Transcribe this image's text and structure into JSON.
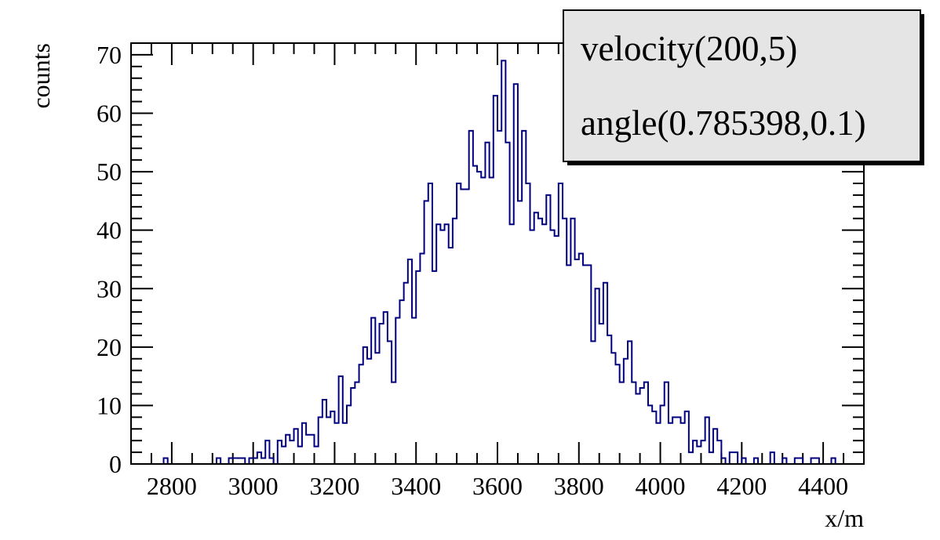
{
  "chart_data": {
    "type": "histogram",
    "x": [
      2700,
      2710,
      2720,
      2730,
      2740,
      2750,
      2760,
      2770,
      2780,
      2790,
      2800,
      2810,
      2820,
      2830,
      2840,
      2850,
      2860,
      2870,
      2880,
      2890,
      2900,
      2910,
      2920,
      2930,
      2940,
      2950,
      2960,
      2970,
      2980,
      2990,
      3000,
      3010,
      3020,
      3030,
      3040,
      3050,
      3060,
      3070,
      3080,
      3090,
      3100,
      3110,
      3120,
      3130,
      3140,
      3150,
      3160,
      3170,
      3180,
      3190,
      3200,
      3210,
      3220,
      3230,
      3240,
      3250,
      3260,
      3270,
      3280,
      3290,
      3300,
      3310,
      3320,
      3330,
      3340,
      3350,
      3360,
      3370,
      3380,
      3390,
      3400,
      3410,
      3420,
      3430,
      3440,
      3450,
      3460,
      3470,
      3480,
      3490,
      3500,
      3510,
      3520,
      3530,
      3540,
      3550,
      3560,
      3570,
      3580,
      3590,
      3600,
      3610,
      3620,
      3630,
      3640,
      3650,
      3660,
      3670,
      3680,
      3690,
      3700,
      3710,
      3720,
      3730,
      3740,
      3750,
      3760,
      3770,
      3780,
      3790,
      3800,
      3810,
      3820,
      3830,
      3840,
      3850,
      3860,
      3870,
      3880,
      3890,
      3900,
      3910,
      3920,
      3930,
      3940,
      3950,
      3960,
      3970,
      3980,
      3990,
      4000,
      4010,
      4020,
      4030,
      4040,
      4050,
      4060,
      4070,
      4080,
      4090,
      4100,
      4110,
      4120,
      4130,
      4140,
      4150,
      4160,
      4170,
      4180,
      4190,
      4200,
      4210,
      4220,
      4230,
      4240,
      4250,
      4260,
      4270,
      4280,
      4290,
      4300,
      4310,
      4320,
      4330,
      4340,
      4350,
      4360,
      4370,
      4380,
      4390,
      4400,
      4410,
      4420,
      4430,
      4440,
      4450,
      4460,
      4470,
      4480,
      4490
    ],
    "values": [
      0,
      0,
      0,
      0,
      0,
      0,
      0,
      0,
      1,
      0,
      0,
      0,
      0,
      0,
      0,
      0,
      0,
      0,
      0,
      0,
      0,
      1,
      0,
      0,
      1,
      1,
      1,
      1,
      0,
      1,
      1,
      2,
      1,
      4,
      1,
      0,
      4,
      3,
      5,
      4,
      6,
      3,
      7,
      5,
      5,
      3,
      8,
      11,
      8,
      9,
      7,
      15,
      7,
      10,
      13,
      14,
      17,
      20,
      18,
      25,
      19,
      24,
      26,
      21,
      14,
      25,
      28,
      31,
      35,
      25,
      33,
      36,
      45,
      48,
      33,
      41,
      40,
      41,
      37,
      42,
      48,
      47,
      47,
      57,
      51,
      50,
      49,
      55,
      49,
      63,
      57,
      69,
      55,
      41,
      65,
      45,
      57,
      48,
      40,
      43,
      42,
      41,
      46,
      40,
      39,
      48,
      42,
      34,
      42,
      35,
      36,
      34,
      34,
      21,
      30,
      24,
      31,
      22,
      19,
      17,
      14,
      18,
      21,
      14,
      12,
      13,
      14,
      10,
      9,
      7,
      10,
      14,
      7,
      8,
      8,
      7,
      9,
      2,
      4,
      3,
      4,
      8,
      2,
      6,
      4,
      1,
      0,
      2,
      2,
      0,
      1,
      0,
      0,
      1,
      0,
      0,
      0,
      2,
      0,
      0,
      1,
      0,
      0,
      1,
      1,
      0,
      0,
      1,
      1,
      0,
      0,
      0,
      1,
      0,
      0,
      0,
      0,
      0,
      0,
      0
    ],
    "bin_width": 10,
    "xlim": [
      2700,
      4500
    ],
    "ylim": [
      0,
      72
    ],
    "xlabel": "x/m",
    "ylabel": "counts",
    "x_ticks": [
      "2800",
      "3000",
      "3200",
      "3400",
      "3600",
      "3800",
      "4000",
      "4200",
      "4400"
    ],
    "y_ticks": [
      "0",
      "10",
      "20",
      "30",
      "40",
      "50",
      "60",
      "70"
    ],
    "line_color": "#00007f",
    "grid": false,
    "legend_position": "top-right"
  },
  "stats_box": {
    "line1": "velocity(200,5)",
    "line2": "angle(0.785398,0.1)",
    "fill_color": "#e5e5e5"
  }
}
